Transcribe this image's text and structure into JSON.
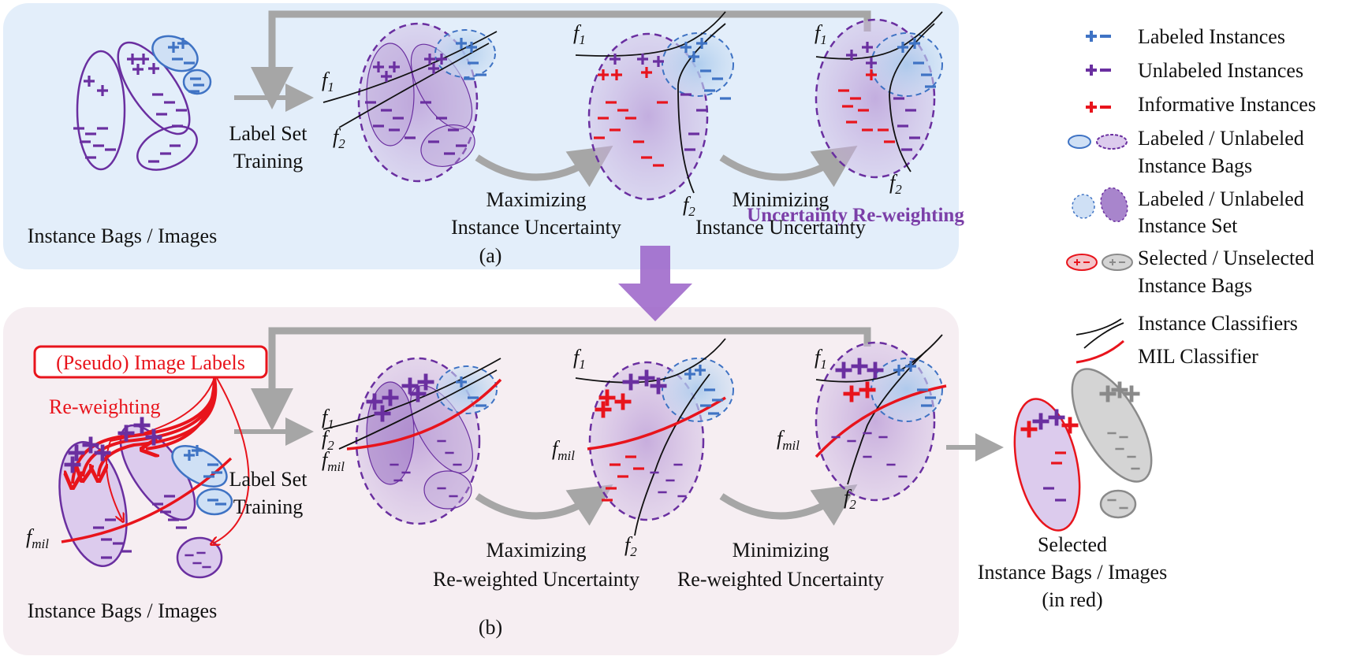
{
  "panel_a": {
    "bags_label": "Instance Bags / Images",
    "train_label": [
      "Label Set",
      "Training"
    ],
    "max_label": [
      "Maximizing",
      "Instance Uncertainty"
    ],
    "min_label": [
      "Minimizing",
      "Instance Uncertainty"
    ],
    "caption": "(a)"
  },
  "transition_label": "Uncertainty Re-weighting",
  "panel_b": {
    "pseudo_labels_box": "(Pseudo) Image Labels",
    "reweighting_label": "Re-weighting",
    "bags_label": "Instance Bags / Images",
    "train_label": [
      "Label Set",
      "Training"
    ],
    "max_label": [
      "Maximizing",
      "Re-weighted Uncertainty"
    ],
    "min_label": [
      "Minimizing",
      "Re-weighted Uncertainty"
    ],
    "caption": "(b)",
    "selected_label": [
      "Selected",
      "Instance Bags / Images",
      "(in red)"
    ]
  },
  "classifiers": {
    "f": "f",
    "sub1": "1",
    "sub2": "2",
    "submil": "mil"
  },
  "legend": [
    {
      "label": [
        "Labeled Instances"
      ],
      "icon": "blue-plus-minus-icon"
    },
    {
      "label": [
        "Unlabeled Instances"
      ],
      "icon": "purple-plus-minus-icon"
    },
    {
      "label": [
        "Informative Instances"
      ],
      "icon": "red-plus-minus-icon"
    },
    {
      "label": [
        "Labeled / Unlabeled",
        "Instance Bags"
      ],
      "icon": "bag-ellipses-icon"
    },
    {
      "label": [
        "Labeled / Unlabeled",
        "Instance Set"
      ],
      "icon": "set-ellipses-icon"
    },
    {
      "label": [
        "Selected / Unselected",
        "Instance Bags"
      ],
      "icon": "selected-bags-icon"
    },
    {
      "label": [
        "Instance Classifiers"
      ],
      "icon": "instance-classifier-icon"
    },
    {
      "label": [
        "MIL Classifier"
      ],
      "icon": "mil-classifier-icon"
    }
  ],
  "colors": {
    "labeled": "#3f73c4",
    "unlabeled": "#6a2fa0",
    "informative": "#e8141c",
    "panel_a_bg": "#e3eefa",
    "panel_b_bg": "#f6eef2",
    "arrow_gray": "#a6a6a6",
    "transition_purple": "#9a62c8"
  }
}
